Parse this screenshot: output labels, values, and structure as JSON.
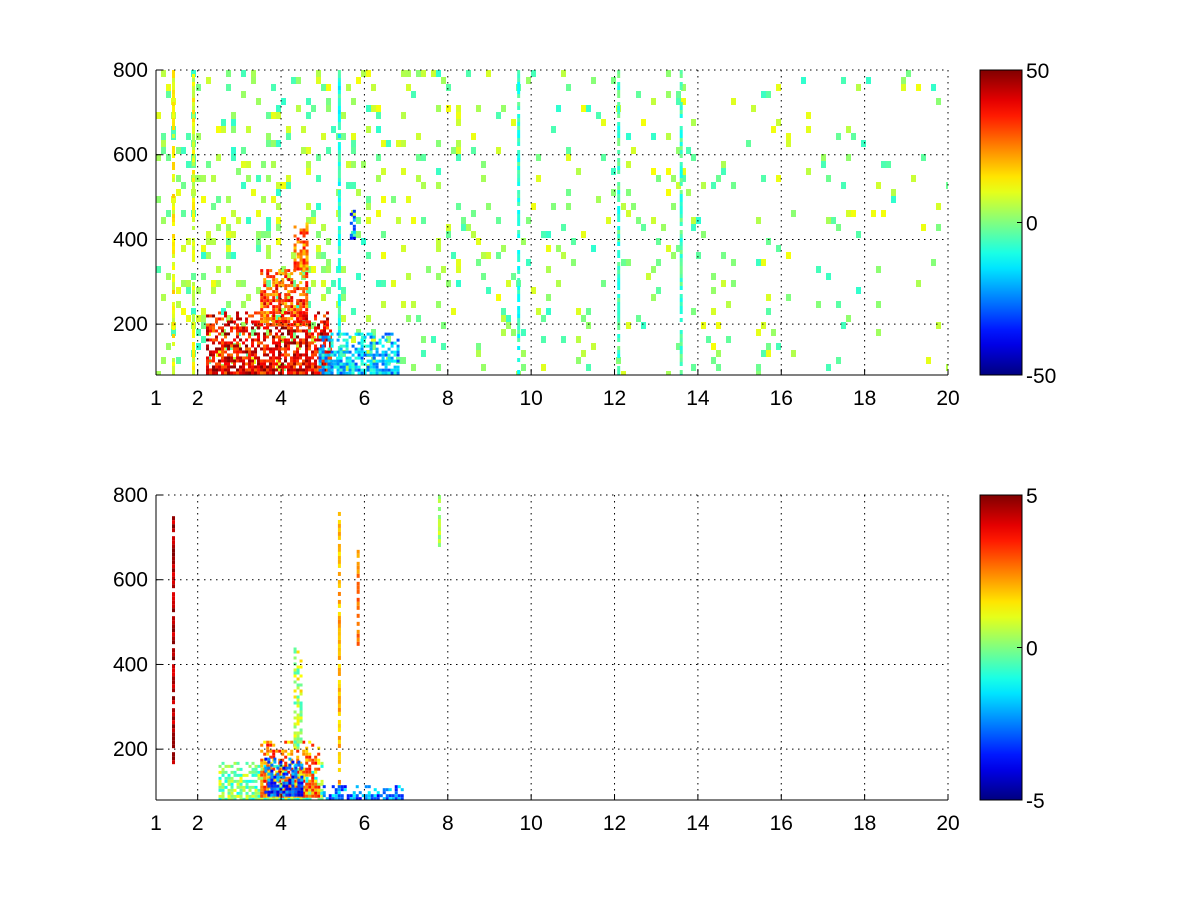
{
  "chart_data": [
    {
      "type": "heatmap",
      "title": "",
      "xlabel": "",
      "ylabel": "",
      "xlim": [
        1,
        20
      ],
      "ylim": [
        80,
        800
      ],
      "xticks": [
        1,
        2,
        4,
        6,
        8,
        10,
        12,
        14,
        16,
        18,
        20
      ],
      "yticks": [
        200,
        400,
        600,
        800
      ],
      "grid": true,
      "colormap": "jet",
      "colorbar": {
        "range": [
          -50,
          50
        ],
        "ticks": [
          -50,
          0,
          50
        ],
        "placement": "right"
      },
      "blobs": [
        {
          "x": [
            2.2,
            5.2
          ],
          "y": [
            80,
            230
          ],
          "value": 38
        },
        {
          "x": [
            3.5,
            4.6
          ],
          "y": [
            200,
            330
          ],
          "value": 30
        },
        {
          "x": [
            4.3,
            4.6
          ],
          "y": [
            330,
            440
          ],
          "value": 26
        },
        {
          "x": [
            4.9,
            6.8
          ],
          "y": [
            80,
            180
          ],
          "value": -18
        },
        {
          "x": [
            5.65,
            5.75
          ],
          "y": [
            400,
            470
          ],
          "value": -28
        }
      ],
      "vertical_stripes": [
        {
          "x": 1.42,
          "y": [
            80,
            800
          ],
          "value": 12
        },
        {
          "x": 1.9,
          "y": [
            80,
            800
          ],
          "value": 10
        },
        {
          "x": 5.4,
          "y": [
            80,
            800
          ],
          "value": -10
        },
        {
          "x": 9.7,
          "y": [
            80,
            800
          ],
          "value": -8
        },
        {
          "x": 12.1,
          "y": [
            80,
            800
          ],
          "value": -6
        },
        {
          "x": 13.6,
          "y": [
            80,
            800
          ],
          "value": -6
        }
      ],
      "scatter_noise": {
        "x": [
          1,
          20
        ],
        "y": [
          80,
          800
        ],
        "value_range": [
          -8,
          12
        ],
        "density_by_x": [
          [
            1,
            0.55
          ],
          [
            6,
            0.35
          ],
          [
            10,
            0.2
          ],
          [
            20,
            0.12
          ]
        ]
      }
    },
    {
      "type": "heatmap",
      "title": "",
      "xlabel": "",
      "ylabel": "",
      "xlim": [
        1,
        20
      ],
      "ylim": [
        80,
        800
      ],
      "xticks": [
        1,
        2,
        4,
        6,
        8,
        10,
        12,
        14,
        16,
        18,
        20
      ],
      "yticks": [
        200,
        400,
        600,
        800
      ],
      "grid": true,
      "colormap": "jet",
      "colorbar": {
        "range": [
          -5,
          5
        ],
        "ticks": [
          -5,
          0,
          5
        ],
        "placement": "right"
      },
      "blobs": [
        {
          "x": [
            2.5,
            5.0
          ],
          "y": [
            80,
            170
          ],
          "value": 0
        },
        {
          "x": [
            3.5,
            4.9
          ],
          "y": [
            90,
            220
          ],
          "value": 2.5
        },
        {
          "x": [
            3.6,
            4.5
          ],
          "y": [
            90,
            180
          ],
          "value": -3
        },
        {
          "x": [
            4.3,
            4.5
          ],
          "y": [
            200,
            440
          ],
          "value": 0.5
        },
        {
          "x": [
            5.0,
            6.9
          ],
          "y": [
            80,
            115
          ],
          "value": -2.5
        }
      ],
      "vertical_stripes": [
        {
          "x": 1.42,
          "y": [
            170,
            750
          ],
          "value": 4.5
        },
        {
          "x": 5.4,
          "y": [
            100,
            760
          ],
          "value": 2
        },
        {
          "x": 5.85,
          "y": [
            450,
            680
          ],
          "value": 2.5
        },
        {
          "x": 7.8,
          "y": [
            680,
            800
          ],
          "value": 0.5
        }
      ],
      "scatter_noise": {
        "x": [
          1,
          20
        ],
        "y": [
          80,
          800
        ],
        "value_range": [
          -1,
          1
        ],
        "density_by_x": [
          [
            1,
            0.0
          ],
          [
            20,
            0.0
          ]
        ]
      }
    }
  ]
}
